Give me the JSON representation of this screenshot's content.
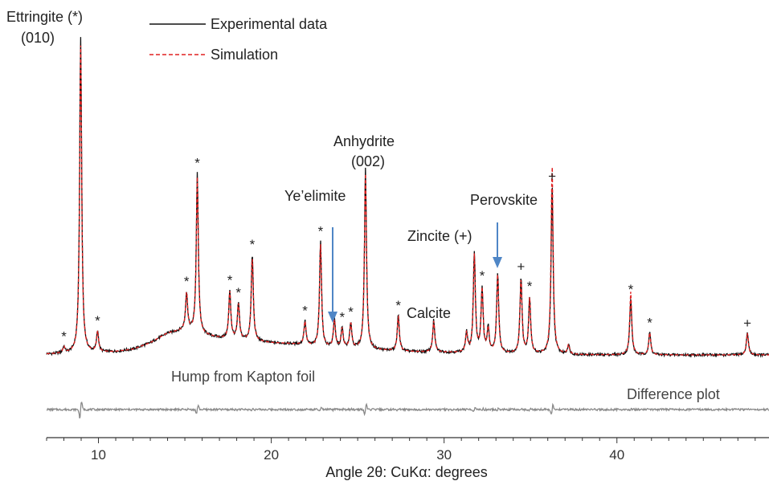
{
  "chart_data": {
    "type": "line",
    "title": "",
    "xlabel": "Angle 2θ: CuKα: degrees",
    "ylabel": "",
    "xlim": [
      7,
      48.8
    ],
    "xticks": [
      10,
      20,
      30,
      40
    ],
    "grid": false,
    "legend": {
      "placement": "top-left",
      "entries": [
        {
          "name": "Experimental data",
          "color": "#000000",
          "style": "solid"
        },
        {
          "name": "Simulation",
          "color": "#e02020",
          "style": "dashed"
        }
      ]
    },
    "baseline_points": [
      [
        7,
        4
      ],
      [
        9,
        5
      ],
      [
        11,
        7
      ],
      [
        12,
        10
      ],
      [
        13,
        18
      ],
      [
        14,
        30
      ],
      [
        15,
        34
      ],
      [
        16,
        28
      ],
      [
        17,
        24
      ],
      [
        18,
        22
      ],
      [
        19,
        20
      ],
      [
        20,
        18
      ],
      [
        21,
        17
      ],
      [
        22,
        15
      ],
      [
        23,
        12
      ],
      [
        24,
        11
      ],
      [
        25,
        10
      ],
      [
        26,
        9
      ],
      [
        27,
        8
      ],
      [
        28,
        7
      ],
      [
        30,
        6
      ],
      [
        32,
        5
      ],
      [
        35,
        4
      ],
      [
        38,
        3
      ],
      [
        42,
        3
      ],
      [
        48.8,
        3
      ]
    ],
    "peaks": [
      {
        "x": 8.0,
        "y": 8,
        "label": "*"
      },
      {
        "x": 8.97,
        "y": 395,
        "label": "Ettringite (*) (010)"
      },
      {
        "x": 9.95,
        "y": 26,
        "label": "*"
      },
      {
        "x": 15.1,
        "y": 47,
        "label": "*"
      },
      {
        "x": 15.72,
        "y": 200,
        "label": "*"
      },
      {
        "x": 17.6,
        "y": 60,
        "label": "*"
      },
      {
        "x": 18.1,
        "y": 45,
        "label": "*"
      },
      {
        "x": 18.9,
        "y": 108,
        "label": "*"
      },
      {
        "x": 21.95,
        "y": 30,
        "label": "*"
      },
      {
        "x": 22.85,
        "y": 132,
        "label": "*"
      },
      {
        "x": 23.65,
        "y": 35,
        "label": "Ye'elimite"
      },
      {
        "x": 24.1,
        "y": 25,
        "label": "*"
      },
      {
        "x": 24.6,
        "y": 32,
        "label": "*"
      },
      {
        "x": 25.45,
        "y": 225,
        "label": "Anhydrite (002)"
      },
      {
        "x": 27.35,
        "y": 45,
        "label": "* Calcite"
      },
      {
        "x": 29.4,
        "y": 40,
        "label": ""
      },
      {
        "x": 31.3,
        "y": 25,
        "label": ""
      },
      {
        "x": 31.75,
        "y": 125,
        "label": "Zincite (+)"
      },
      {
        "x": 32.2,
        "y": 80,
        "label": "*"
      },
      {
        "x": 32.55,
        "y": 30,
        "label": ""
      },
      {
        "x": 33.1,
        "y": 100,
        "label": "Perovskite"
      },
      {
        "x": 34.45,
        "y": 95,
        "label": "+"
      },
      {
        "x": 34.95,
        "y": 70,
        "label": "*"
      },
      {
        "x": 36.25,
        "y": 210,
        "label": "+"
      },
      {
        "x": 37.2,
        "y": 12,
        "label": ""
      },
      {
        "x": 40.8,
        "y": 70,
        "label": "*"
      },
      {
        "x": 41.9,
        "y": 28,
        "label": "*"
      },
      {
        "x": 47.55,
        "y": 28,
        "label": "+"
      }
    ],
    "arrows": [
      {
        "x": 23.65,
        "label": "Ye'elimite"
      },
      {
        "x": 33.1,
        "label": "Perovskite"
      }
    ],
    "annotations": {
      "kapton": "Hump from Kapton foil",
      "difference": "Difference plot"
    }
  },
  "labels": {
    "ettringite_1": "Ettringite (*)",
    "ettringite_2": "(010)",
    "anhydrite_1": "Anhydrite",
    "anhydrite_2": "(002)",
    "yeelimite": "Ye’elimite",
    "perovskite": "Perovskite",
    "zincite": "Zincite (+)",
    "calcite": "Calcite",
    "kapton": "Hump from Kapton foil",
    "difference": "Difference plot",
    "legend_exp": "Experimental data",
    "legend_sim": "Simulation",
    "xlabel": "Angle 2θ: CuKα: degrees"
  },
  "colors": {
    "experimental": "#111111",
    "simulation": "#e02020",
    "difference": "#8a8a8a",
    "arrow": "#4f86c6",
    "axis": "#333333"
  }
}
